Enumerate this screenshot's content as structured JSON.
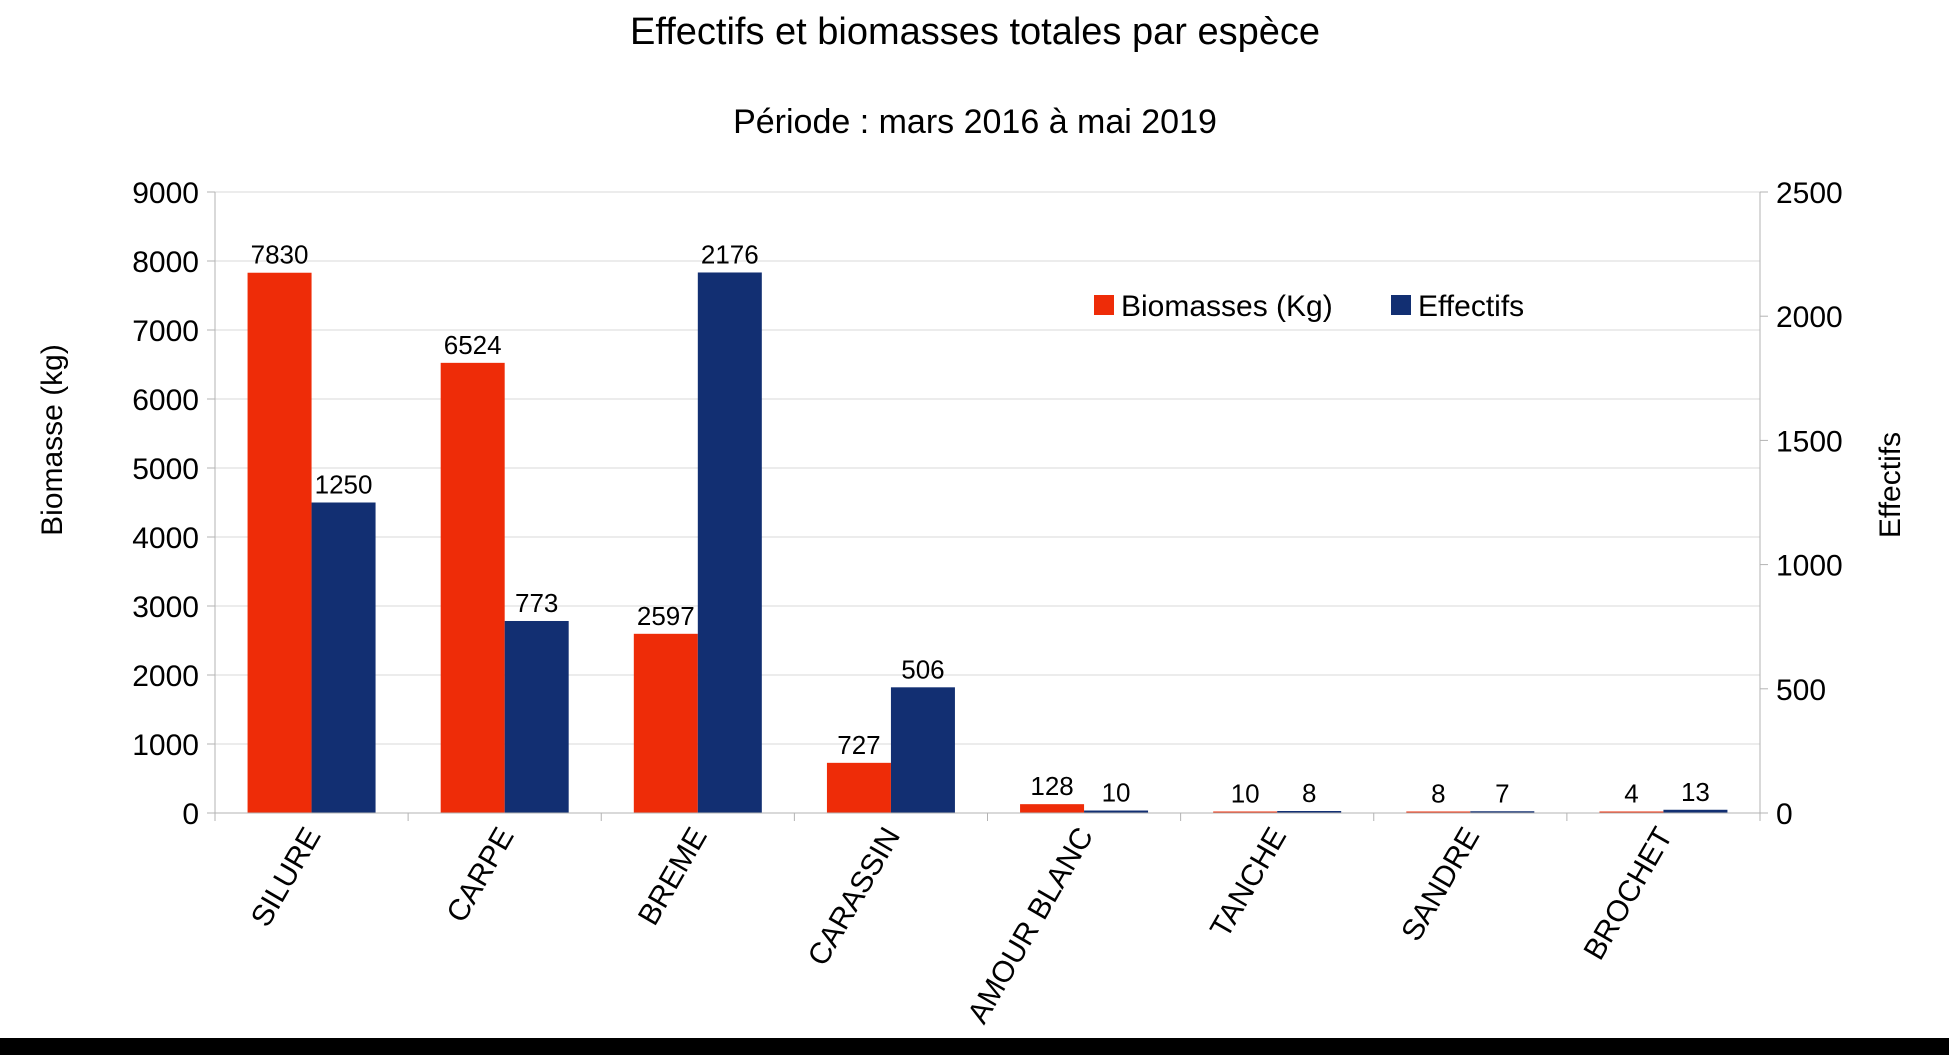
{
  "chart_data": {
    "type": "bar",
    "title": "Effectifs et biomasses totales par espèce",
    "subtitle": "Période : mars 2016 à mai 2019",
    "ylabel": "Biomasse (kg)",
    "y2label": "Effectifs",
    "categories": [
      "SILURE",
      "CARPE",
      "BREME",
      "CARASSIN",
      "AMOUR BLANC",
      "TANCHE",
      "SANDRE",
      "BROCHET"
    ],
    "ylim": [
      0,
      9000
    ],
    "y_ticks": [
      0,
      1000,
      2000,
      3000,
      4000,
      5000,
      6000,
      7000,
      8000,
      9000
    ],
    "y2lim": [
      0,
      2500
    ],
    "y2_ticks": [
      0,
      500,
      1000,
      1500,
      2000,
      2500
    ],
    "grid": true,
    "legend_position": "top-right",
    "series": [
      {
        "name": "Biomasses (Kg)",
        "axis": "left",
        "color": "#ee2c08",
        "values": [
          7830,
          6524,
          2597,
          727,
          128,
          10,
          8,
          4
        ]
      },
      {
        "name": "Effectifs",
        "axis": "right",
        "color": "#122f72",
        "values": [
          1250,
          773,
          2176,
          506,
          10,
          8,
          7,
          13
        ]
      }
    ]
  }
}
